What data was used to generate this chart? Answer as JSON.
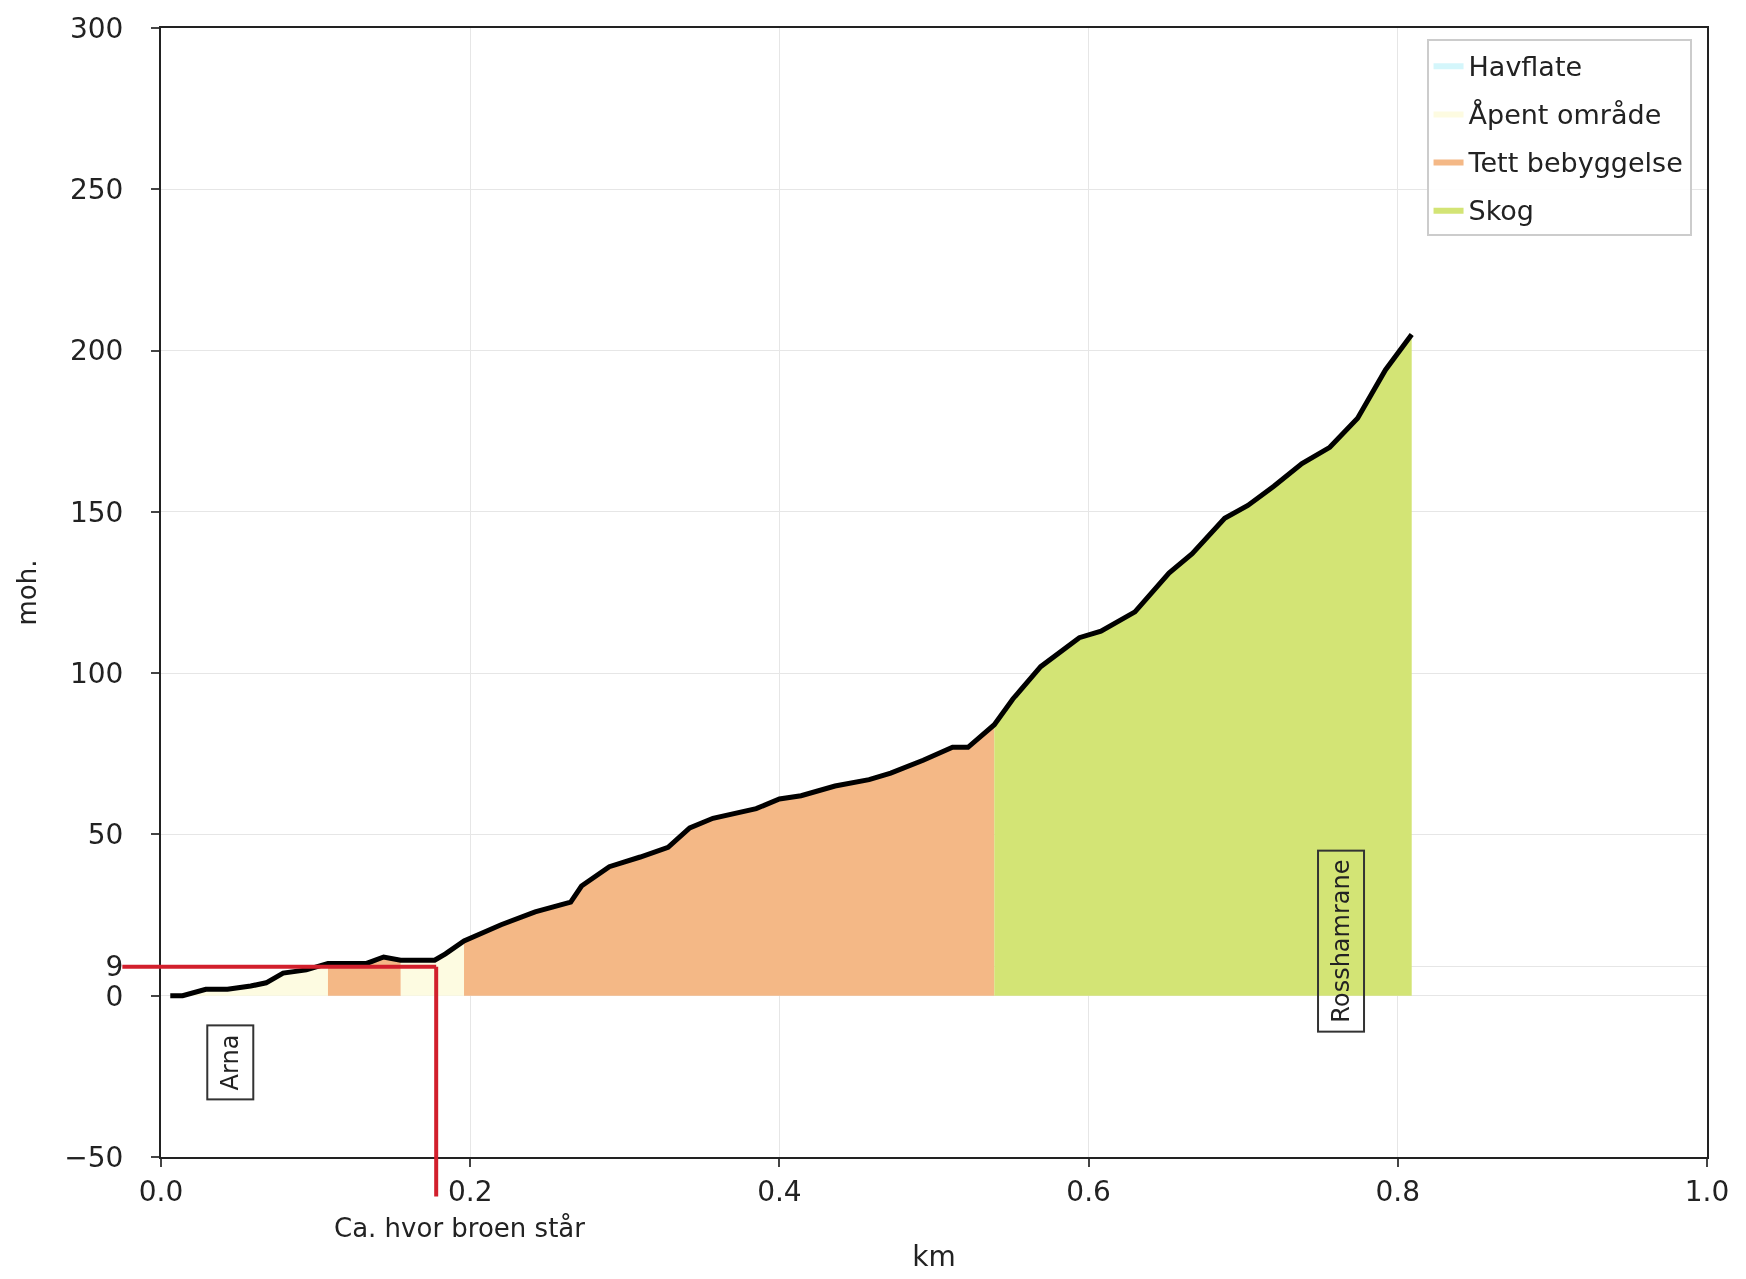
{
  "chart_data": {
    "type": "area",
    "xlabel": "km",
    "ylabel": "moh.",
    "x": [
      0.006,
      0.014,
      0.029,
      0.043,
      0.058,
      0.068,
      0.079,
      0.094,
      0.108,
      0.133,
      0.144,
      0.155,
      0.177,
      0.184,
      0.196,
      0.22,
      0.242,
      0.265,
      0.272,
      0.29,
      0.31,
      0.328,
      0.342,
      0.357,
      0.385,
      0.4,
      0.414,
      0.436,
      0.458,
      0.472,
      0.493,
      0.512,
      0.522,
      0.539,
      0.551,
      0.569,
      0.594,
      0.608,
      0.63,
      0.652,
      0.667,
      0.688,
      0.703,
      0.72,
      0.738,
      0.756,
      0.774,
      0.792,
      0.809
    ],
    "series": [
      {
        "name": "Havflate",
        "color": "#d4f6fb",
        "values": [
          null,
          null,
          null,
          null,
          null,
          null,
          null,
          null,
          null,
          null,
          null,
          null,
          null,
          null,
          null,
          null,
          null,
          null,
          null,
          null,
          null,
          null,
          null,
          null,
          null,
          null,
          null,
          null,
          null,
          null,
          null,
          null,
          null,
          null,
          null,
          null,
          null,
          null,
          null,
          null,
          null,
          null,
          null,
          null,
          null,
          null,
          null,
          null,
          null
        ]
      },
      {
        "name": "Åpent område",
        "color": "#fdfbe1",
        "values": [
          0,
          0,
          2,
          2,
          3,
          4,
          7,
          8,
          10,
          null,
          null,
          11,
          11,
          13,
          17,
          null,
          null,
          null,
          null,
          null,
          null,
          null,
          null,
          null,
          null,
          null,
          null,
          null,
          null,
          null,
          null,
          null,
          null,
          null,
          null,
          null,
          null,
          null,
          null,
          null,
          null,
          null,
          null,
          null,
          null,
          null,
          null,
          null,
          null
        ]
      },
      {
        "name": "Tett bebyggelse",
        "color": "#f4b886",
        "values": [
          null,
          null,
          null,
          null,
          null,
          null,
          null,
          null,
          10,
          10,
          12,
          11,
          null,
          null,
          17,
          22,
          26,
          29,
          34,
          40,
          43,
          46,
          52,
          55,
          58,
          61,
          62,
          65,
          67,
          69,
          73,
          77,
          77,
          84,
          null,
          null,
          null,
          null,
          null,
          null,
          null,
          null,
          null,
          null,
          null,
          null,
          null,
          null,
          null
        ]
      },
      {
        "name": "Skog",
        "color": "#d3e475",
        "values": [
          null,
          null,
          null,
          null,
          null,
          null,
          null,
          null,
          null,
          null,
          null,
          null,
          null,
          null,
          null,
          null,
          null,
          null,
          null,
          null,
          null,
          null,
          null,
          null,
          null,
          null,
          null,
          null,
          null,
          null,
          null,
          null,
          null,
          84,
          92,
          102,
          111,
          113,
          119,
          131,
          137,
          148,
          152,
          158,
          165,
          170,
          179,
          194,
          205
        ]
      },
      {
        "type": "line",
        "color": "#000000",
        "values": [
          0,
          0,
          2,
          2,
          3,
          4,
          7,
          8,
          10,
          10,
          12,
          11,
          11,
          13,
          17,
          22,
          26,
          29,
          34,
          40,
          43,
          46,
          52,
          55,
          58,
          61,
          62,
          65,
          67,
          69,
          73,
          77,
          77,
          84,
          92,
          102,
          111,
          113,
          119,
          131,
          137,
          148,
          152,
          158,
          165,
          170,
          179,
          194,
          205
        ]
      }
    ],
    "xlim": [
      0.0,
      1.0
    ],
    "xticks": [
      {
        "value": 0,
        "label": "0.0"
      },
      0.2,
      0.4,
      0.6,
      0.8,
      {
        "value": 1,
        "label": "1.0"
      }
    ],
    "ref_lines": [
      {
        "axis": "y",
        "value": 9,
        "color": "#d21f2c"
      },
      {
        "axis": "x",
        "value": 0.178,
        "label": "Ca. hvor broen står",
        "color": "#d21f2c"
      }
    ],
    "ylim": [
      -50,
      300
    ],
    "yticks": [
      -50,
      0,
      9,
      50,
      100,
      150,
      200,
      250,
      300
    ],
    "grid": true,
    "legend": "top right",
    "marker": "none",
    "annotations": [
      "Arna",
      "Rosshamrane"
    ]
  }
}
